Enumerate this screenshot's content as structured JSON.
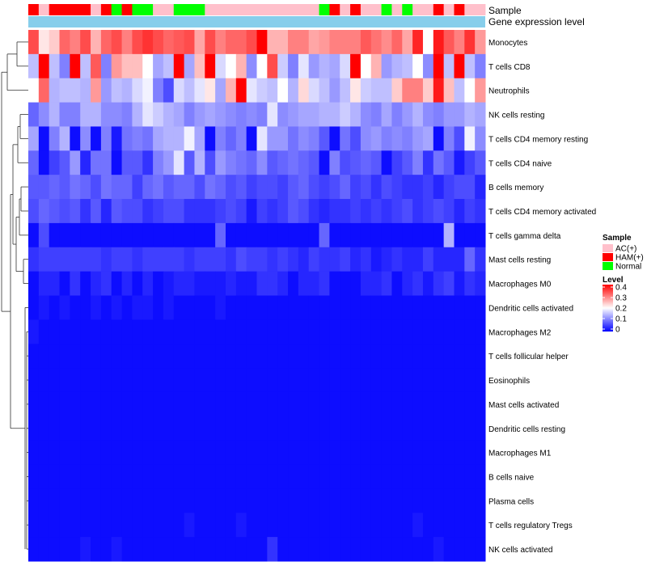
{
  "chart_data": {
    "type": "heatmap",
    "title": "",
    "annotation_tracks": [
      "Sample",
      "Gene expression level"
    ],
    "sample_groups": [
      "HAM(+)",
      "AC(+)",
      "HAM(+)",
      "HAM(+)",
      "HAM(+)",
      "HAM(+)",
      "AC(+)",
      "HAM(+)",
      "Normal",
      "HAM(+)",
      "Normal",
      "Normal",
      "AC(+)",
      "AC(+)",
      "Normal",
      "Normal",
      "Normal",
      "AC(+)",
      "AC(+)",
      "AC(+)",
      "AC(+)",
      "AC(+)",
      "AC(+)",
      "AC(+)",
      "AC(+)",
      "AC(+)",
      "AC(+)",
      "AC(+)",
      "Normal",
      "HAM(+)",
      "AC(+)",
      "HAM(+)",
      "AC(+)",
      "AC(+)",
      "Normal",
      "AC(+)",
      "Normal",
      "AC(+)",
      "AC(+)",
      "HAM(+)",
      "AC(+)",
      "HAM(+)",
      "AC(+)",
      "AC(+)"
    ],
    "rows": [
      "Monocytes",
      "T cells CD8",
      "Neutrophils",
      "NK cells resting",
      "T cells CD4 memory resting",
      "T cells CD4 naive",
      "B cells memory",
      "T cells CD4 memory activated",
      "T cells gamma delta",
      "Mast cells resting",
      "Macrophages M0",
      "Dendritic cells activated",
      "Macrophages M2",
      "T cells follicular helper",
      "Eosinophils",
      "Mast cells activated",
      "Dendritic cells resting",
      "Macrophages M1",
      "B cells naive",
      "Plasma cells",
      "T cells regulatory  Tregs",
      "NK cells activated"
    ],
    "values": [
      [
        0.34,
        0.22,
        0.24,
        0.32,
        0.3,
        0.34,
        0.26,
        0.32,
        0.34,
        0.3,
        0.34,
        0.36,
        0.34,
        0.32,
        0.33,
        0.34,
        0.27,
        0.34,
        0.3,
        0.32,
        0.32,
        0.34,
        0.4,
        0.26,
        0.26,
        0.3,
        0.3,
        0.27,
        0.28,
        0.3,
        0.3,
        0.3,
        0.33,
        0.31,
        0.29,
        0.32,
        0.27,
        0.37,
        0.2,
        0.38,
        0.33,
        0.3,
        0.36,
        0.28
      ],
      [
        0.15,
        0.4,
        0.15,
        0.1,
        0.4,
        0.15,
        0.33,
        0.1,
        0.28,
        0.25,
        0.25,
        0.2,
        0.13,
        0.15,
        0.4,
        0.13,
        0.25,
        0.4,
        0.17,
        0.2,
        0.26,
        0.11,
        0.2,
        0.34,
        0.16,
        0.1,
        0.18,
        0.12,
        0.14,
        0.13,
        0.17,
        0.4,
        0.2,
        0.26,
        0.12,
        0.14,
        0.15,
        0.2,
        0.11,
        0.4,
        0.15,
        0.4,
        0.15,
        0.1
      ],
      [
        0.2,
        0.32,
        0.14,
        0.15,
        0.15,
        0.14,
        0.28,
        0.12,
        0.15,
        0.14,
        0.17,
        0.19,
        0.1,
        0.06,
        0.17,
        0.15,
        0.18,
        0.22,
        0.13,
        0.26,
        0.4,
        0.18,
        0.16,
        0.15,
        0.2,
        0.14,
        0.23,
        0.17,
        0.15,
        0.12,
        0.15,
        0.22,
        0.16,
        0.15,
        0.15,
        0.24,
        0.3,
        0.3,
        0.24,
        0.38,
        0.25,
        0.15,
        0.2,
        0.28
      ],
      [
        0.08,
        0.11,
        0.14,
        0.1,
        0.1,
        0.14,
        0.14,
        0.11,
        0.11,
        0.1,
        0.14,
        0.18,
        0.16,
        0.14,
        0.13,
        0.1,
        0.12,
        0.13,
        0.12,
        0.11,
        0.1,
        0.11,
        0.1,
        0.18,
        0.11,
        0.12,
        0.13,
        0.13,
        0.14,
        0.14,
        0.16,
        0.14,
        0.11,
        0.1,
        0.13,
        0.1,
        0.12,
        0.14,
        0.11,
        0.1,
        0.12,
        0.12,
        0.14,
        0.13
      ],
      [
        0.13,
        0.01,
        0.1,
        0.14,
        0.01,
        0.11,
        0.01,
        0.1,
        0.02,
        0.09,
        0.1,
        0.09,
        0.13,
        0.14,
        0.14,
        0.19,
        0.13,
        0.01,
        0.1,
        0.08,
        0.1,
        0.01,
        0.18,
        0.12,
        0.12,
        0.09,
        0.11,
        0.1,
        0.07,
        0.01,
        0.09,
        0.06,
        0.11,
        0.12,
        0.1,
        0.11,
        0.1,
        0.12,
        0.13,
        0.01,
        0.1,
        0.06,
        0.19,
        0.11
      ],
      [
        0.08,
        0.01,
        0.05,
        0.07,
        0.12,
        0.03,
        0.09,
        0.09,
        0.01,
        0.07,
        0.07,
        0.04,
        0.1,
        0.12,
        0.18,
        0.07,
        0.14,
        0.06,
        0.12,
        0.1,
        0.09,
        0.08,
        0.11,
        0.07,
        0.08,
        0.09,
        0.08,
        0.07,
        0.01,
        0.1,
        0.06,
        0.07,
        0.08,
        0.07,
        0.01,
        0.05,
        0.07,
        0.1,
        0.04,
        0.09,
        0.07,
        0.02,
        0.05,
        0.07
      ],
      [
        0.07,
        0.07,
        0.08,
        0.07,
        0.09,
        0.08,
        0.06,
        0.09,
        0.08,
        0.08,
        0.05,
        0.08,
        0.09,
        0.07,
        0.08,
        0.08,
        0.06,
        0.09,
        0.08,
        0.06,
        0.07,
        0.05,
        0.06,
        0.06,
        0.05,
        0.07,
        0.08,
        0.06,
        0.05,
        0.06,
        0.08,
        0.05,
        0.06,
        0.04,
        0.06,
        0.05,
        0.04,
        0.04,
        0.05,
        0.03,
        0.05,
        0.06,
        0.06,
        0.03
      ],
      [
        0.06,
        0.08,
        0.07,
        0.06,
        0.07,
        0.04,
        0.07,
        0.03,
        0.07,
        0.06,
        0.06,
        0.04,
        0.05,
        0.06,
        0.06,
        0.04,
        0.04,
        0.04,
        0.05,
        0.06,
        0.05,
        0.02,
        0.05,
        0.04,
        0.05,
        0.07,
        0.06,
        0.04,
        0.03,
        0.04,
        0.04,
        0.05,
        0.04,
        0.05,
        0.04,
        0.05,
        0.06,
        0.04,
        0.05,
        0.06,
        0.05,
        0.03,
        0.05,
        0.04
      ],
      [
        0.01,
        0.06,
        0.01,
        0.01,
        0.01,
        0.01,
        0.01,
        0.01,
        0.01,
        0.01,
        0.01,
        0.01,
        0.01,
        0.01,
        0.01,
        0.01,
        0.01,
        0.01,
        0.08,
        0.01,
        0.01,
        0.01,
        0.01,
        0.01,
        0.01,
        0.01,
        0.01,
        0.01,
        0.08,
        0.01,
        0.01,
        0.01,
        0.01,
        0.01,
        0.01,
        0.01,
        0.01,
        0.01,
        0.01,
        0.01,
        0.14,
        0.01,
        0.01,
        0.01
      ],
      [
        0.04,
        0.05,
        0.05,
        0.05,
        0.05,
        0.05,
        0.05,
        0.04,
        0.05,
        0.05,
        0.04,
        0.05,
        0.05,
        0.05,
        0.05,
        0.04,
        0.05,
        0.05,
        0.05,
        0.04,
        0.06,
        0.05,
        0.05,
        0.04,
        0.05,
        0.04,
        0.03,
        0.05,
        0.04,
        0.04,
        0.05,
        0.03,
        0.04,
        0.02,
        0.03,
        0.04,
        0.03,
        0.03,
        0.05,
        0.03,
        0.03,
        0.03,
        0.08,
        0.04
      ],
      [
        0.01,
        0.03,
        0.03,
        0.01,
        0.04,
        0.01,
        0.03,
        0.04,
        0.01,
        0.03,
        0.01,
        0.03,
        0.01,
        0.02,
        0.03,
        0.03,
        0.02,
        0.02,
        0.02,
        0.03,
        0.02,
        0.02,
        0.04,
        0.04,
        0.03,
        0.01,
        0.03,
        0.03,
        0.04,
        0.01,
        0.01,
        0.01,
        0.03,
        0.03,
        0.04,
        0.01,
        0.03,
        0.04,
        0.02,
        0.04,
        0.05,
        0.02,
        0.04,
        0.03
      ],
      [
        0.01,
        0.02,
        0.01,
        0.02,
        0.01,
        0.01,
        0.02,
        0.01,
        0.02,
        0.01,
        0.02,
        0.02,
        0.01,
        0.02,
        0.01,
        0.01,
        0.01,
        0.01,
        0.02,
        0.01,
        0.01,
        0.01,
        0.01,
        0.01,
        0.01,
        0.01,
        0.01,
        0.01,
        0.01,
        0.01,
        0.01,
        0.01,
        0.01,
        0.01,
        0.01,
        0.01,
        0.01,
        0.01,
        0.01,
        0.01,
        0.01,
        0.01,
        0.01,
        0.01
      ],
      [
        0.02,
        0.01,
        0.01,
        0.01,
        0.01,
        0.01,
        0.01,
        0.01,
        0.01,
        0.01,
        0.01,
        0.01,
        0.01,
        0.01,
        0.01,
        0.01,
        0.01,
        0.01,
        0.01,
        0.01,
        0.01,
        0.01,
        0.01,
        0.01,
        0.01,
        0.01,
        0.01,
        0.01,
        0.01,
        0.01,
        0.01,
        0.01,
        0.01,
        0.01,
        0.01,
        0.01,
        0.01,
        0.01,
        0.01,
        0.01,
        0.01,
        0.01,
        0.01,
        0.01
      ],
      [
        0.01,
        0.01,
        0.01,
        0.01,
        0.01,
        0.01,
        0.01,
        0.01,
        0.01,
        0.01,
        0.01,
        0.01,
        0.01,
        0.01,
        0.01,
        0.01,
        0.01,
        0.01,
        0.01,
        0.01,
        0.01,
        0.01,
        0.01,
        0.01,
        0.01,
        0.01,
        0.01,
        0.01,
        0.01,
        0.01,
        0.01,
        0.01,
        0.01,
        0.01,
        0.01,
        0.01,
        0.01,
        0.01,
        0.01,
        0.01,
        0.01,
        0.01,
        0.01,
        0.01
      ],
      [
        0.01,
        0.01,
        0.01,
        0.01,
        0.01,
        0.01,
        0.01,
        0.01,
        0.01,
        0.01,
        0.01,
        0.01,
        0.01,
        0.01,
        0.01,
        0.01,
        0.01,
        0.01,
        0.01,
        0.01,
        0.01,
        0.01,
        0.01,
        0.01,
        0.01,
        0.01,
        0.01,
        0.01,
        0.01,
        0.01,
        0.01,
        0.01,
        0.01,
        0.01,
        0.01,
        0.01,
        0.01,
        0.01,
        0.01,
        0.01,
        0.01,
        0.01,
        0.01,
        0.01
      ],
      [
        0.01,
        0.01,
        0.01,
        0.01,
        0.01,
        0.01,
        0.01,
        0.01,
        0.01,
        0.01,
        0.01,
        0.01,
        0.01,
        0.01,
        0.01,
        0.01,
        0.01,
        0.01,
        0.01,
        0.01,
        0.01,
        0.01,
        0.01,
        0.01,
        0.01,
        0.01,
        0.01,
        0.01,
        0.01,
        0.01,
        0.01,
        0.01,
        0.01,
        0.01,
        0.01,
        0.01,
        0.01,
        0.01,
        0.01,
        0.01,
        0.01,
        0.01,
        0.01,
        0.01
      ],
      [
        0.01,
        0.01,
        0.01,
        0.01,
        0.01,
        0.01,
        0.01,
        0.01,
        0.01,
        0.01,
        0.01,
        0.01,
        0.01,
        0.01,
        0.01,
        0.01,
        0.01,
        0.01,
        0.01,
        0.01,
        0.01,
        0.01,
        0.01,
        0.01,
        0.01,
        0.01,
        0.01,
        0.01,
        0.01,
        0.01,
        0.01,
        0.01,
        0.01,
        0.01,
        0.01,
        0.01,
        0.01,
        0.01,
        0.01,
        0.01,
        0.01,
        0.01,
        0.01,
        0.01
      ],
      [
        0.01,
        0.01,
        0.01,
        0.01,
        0.01,
        0.01,
        0.01,
        0.01,
        0.01,
        0.01,
        0.01,
        0.01,
        0.01,
        0.01,
        0.01,
        0.01,
        0.01,
        0.01,
        0.01,
        0.01,
        0.01,
        0.01,
        0.01,
        0.01,
        0.01,
        0.01,
        0.01,
        0.01,
        0.01,
        0.01,
        0.01,
        0.01,
        0.01,
        0.01,
        0.01,
        0.01,
        0.01,
        0.01,
        0.01,
        0.01,
        0.01,
        0.01,
        0.01,
        0.01
      ],
      [
        0.01,
        0.01,
        0.01,
        0.01,
        0.01,
        0.01,
        0.01,
        0.01,
        0.01,
        0.01,
        0.01,
        0.01,
        0.01,
        0.01,
        0.01,
        0.01,
        0.01,
        0.01,
        0.01,
        0.01,
        0.01,
        0.01,
        0.01,
        0.01,
        0.01,
        0.01,
        0.01,
        0.01,
        0.01,
        0.01,
        0.01,
        0.01,
        0.01,
        0.01,
        0.01,
        0.01,
        0.01,
        0.01,
        0.01,
        0.01,
        0.01,
        0.01,
        0.01,
        0.01
      ],
      [
        0.01,
        0.01,
        0.01,
        0.01,
        0.01,
        0.01,
        0.01,
        0.01,
        0.01,
        0.01,
        0.01,
        0.01,
        0.01,
        0.01,
        0.01,
        0.01,
        0.01,
        0.01,
        0.01,
        0.01,
        0.01,
        0.01,
        0.01,
        0.01,
        0.01,
        0.01,
        0.01,
        0.01,
        0.01,
        0.01,
        0.01,
        0.01,
        0.01,
        0.01,
        0.01,
        0.01,
        0.01,
        0.01,
        0.01,
        0.01,
        0.01,
        0.01,
        0.01,
        0.01
      ],
      [
        0.01,
        0.01,
        0.01,
        0.01,
        0.01,
        0.01,
        0.01,
        0.01,
        0.01,
        0.01,
        0.01,
        0.01,
        0.01,
        0.01,
        0.01,
        0.02,
        0.01,
        0.01,
        0.01,
        0.01,
        0.02,
        0.01,
        0.01,
        0.01,
        0.01,
        0.01,
        0.01,
        0.01,
        0.01,
        0.01,
        0.01,
        0.01,
        0.01,
        0.01,
        0.01,
        0.01,
        0.01,
        0.02,
        0.01,
        0.01,
        0.01,
        0.01,
        0.01,
        0.01
      ],
      [
        0.01,
        0.01,
        0.01,
        0.01,
        0.01,
        0.02,
        0.01,
        0.01,
        0.02,
        0.01,
        0.01,
        0.01,
        0.01,
        0.01,
        0.01,
        0.01,
        0.01,
        0.01,
        0.01,
        0.01,
        0.01,
        0.01,
        0.01,
        0.04,
        0.01,
        0.01,
        0.01,
        0.01,
        0.01,
        0.01,
        0.01,
        0.01,
        0.01,
        0.01,
        0.01,
        0.01,
        0.01,
        0.01,
        0.01,
        0.02,
        0.01,
        0.01,
        0.01,
        0.01
      ]
    ],
    "color_scale": {
      "min": 0,
      "max": 0.4,
      "low": "#0000ff",
      "mid": "#ffffff",
      "high": "#ff0000",
      "mid_value": 0.2
    },
    "legend": {
      "sample_title": "Sample",
      "sample_entries": [
        {
          "label": "AC(+)",
          "color": "#ffc0cb"
        },
        {
          "label": "HAM(+)",
          "color": "#ff0000"
        },
        {
          "label": "Normal",
          "color": "#00ff00"
        }
      ],
      "level_title": "Level",
      "level_ticks": [
        "0.4",
        "0.3",
        "0.2",
        "0.1",
        "0"
      ],
      "level_tick_values": [
        0.4,
        0.3,
        0.2,
        0.1,
        0
      ],
      "placement": "right"
    },
    "gene_expression_color": "#87ceeb"
  }
}
